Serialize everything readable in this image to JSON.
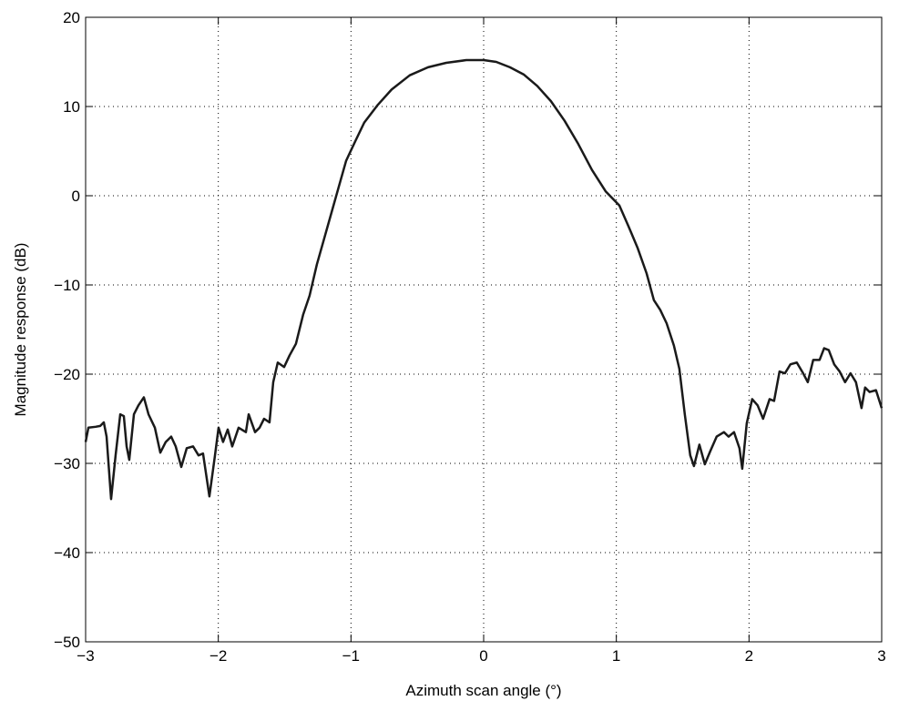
{
  "chart_data": {
    "type": "line",
    "x_label": "Azimuth scan angle (°)",
    "y_label": "Magnitude response (dB)",
    "xlim": [
      -3,
      3
    ],
    "ylim": [
      -50,
      20
    ],
    "xticks": [
      {
        "value": -3,
        "label": "−3"
      },
      {
        "value": -2,
        "label": "−2"
      },
      {
        "value": -1,
        "label": "−1"
      },
      0,
      1,
      2,
      3
    ],
    "yticks": [
      {
        "value": -50,
        "label": "−50"
      },
      {
        "value": -40,
        "label": "−40"
      },
      {
        "value": -30,
        "label": "−30"
      },
      {
        "value": -20,
        "label": "−20"
      },
      {
        "value": -10,
        "label": "−10"
      },
      0,
      10,
      20
    ],
    "grid": true,
    "series": [
      {
        "color": "#1a1a1a",
        "x": [
          -3,
          -2.979,
          -2.925,
          -2.89,
          -2.863,
          -2.842,
          -2.808,
          -2.774,
          -2.739,
          -2.712,
          -2.691,
          -2.671,
          -2.636,
          -2.602,
          -2.561,
          -2.526,
          -2.478,
          -2.437,
          -2.396,
          -2.355,
          -2.321,
          -2.279,
          -2.238,
          -2.19,
          -2.149,
          -2.115,
          -2.067,
          -2.025,
          -1.998,
          -1.964,
          -1.929,
          -1.895,
          -1.847,
          -1.792,
          -1.771,
          -1.723,
          -1.689,
          -1.655,
          -1.614,
          -1.586,
          -1.552,
          -1.504,
          -1.463,
          -1.415,
          -1.36,
          -1.312,
          -1.257,
          -1.202,
          -1.147,
          -1.092,
          -1.037,
          -0.968,
          -0.9,
          -0.797,
          -0.694,
          -0.557,
          -0.419,
          -0.282,
          -0.131,
          0,
          0.095,
          0.198,
          0.301,
          0.404,
          0.507,
          0.61,
          0.713,
          0.816,
          0.919,
          1.023,
          1.091,
          1.159,
          1.228,
          1.283,
          1.331,
          1.379,
          1.434,
          1.475,
          1.516,
          1.557,
          1.585,
          1.626,
          1.667,
          1.709,
          1.756,
          1.811,
          1.846,
          1.887,
          1.928,
          1.949,
          1.983,
          2.024,
          2.065,
          2.106,
          2.155,
          2.189,
          2.23,
          2.271,
          2.312,
          2.36,
          2.408,
          2.443,
          2.484,
          2.532,
          2.566,
          2.601,
          2.642,
          2.683,
          2.724,
          2.765,
          2.806,
          2.848,
          2.875,
          2.909,
          2.957,
          3
        ],
        "values": [
          -27.6,
          -26.0,
          -25.9,
          -25.8,
          -25.4,
          -27.0,
          -34.0,
          -29.1,
          -24.5,
          -24.7,
          -28.1,
          -29.6,
          -24.5,
          -23.5,
          -22.6,
          -24.5,
          -26.0,
          -28.8,
          -27.6,
          -27.0,
          -28.1,
          -30.4,
          -28.3,
          -28.1,
          -29.1,
          -28.9,
          -33.7,
          -29.1,
          -26.0,
          -27.6,
          -26.2,
          -28.1,
          -26.0,
          -26.5,
          -24.5,
          -26.5,
          -26.0,
          -25.0,
          -25.4,
          -20.9,
          -18.7,
          -19.2,
          -17.9,
          -16.6,
          -13.3,
          -11.2,
          -7.7,
          -4.8,
          -1.9,
          1.0,
          3.9,
          6.1,
          8.2,
          10.2,
          11.9,
          13.5,
          14.4,
          14.9,
          15.2,
          15.2,
          15.0,
          14.4,
          13.6,
          12.3,
          10.6,
          8.4,
          5.8,
          2.9,
          0.5,
          -1.1,
          -3.4,
          -5.8,
          -8.7,
          -11.7,
          -12.8,
          -14.3,
          -16.8,
          -19.4,
          -24.5,
          -29.1,
          -30.3,
          -27.9,
          -30.1,
          -28.6,
          -27.0,
          -26.5,
          -27.0,
          -26.5,
          -28.3,
          -30.6,
          -25.5,
          -22.8,
          -23.5,
          -25.0,
          -22.8,
          -23.0,
          -19.7,
          -19.9,
          -18.9,
          -18.7,
          -19.9,
          -20.9,
          -18.4,
          -18.4,
          -17.1,
          -17.3,
          -18.9,
          -19.7,
          -20.9,
          -19.9,
          -20.9,
          -23.8,
          -21.5,
          -22.0,
          -21.8,
          -23.8
        ]
      }
    ]
  }
}
